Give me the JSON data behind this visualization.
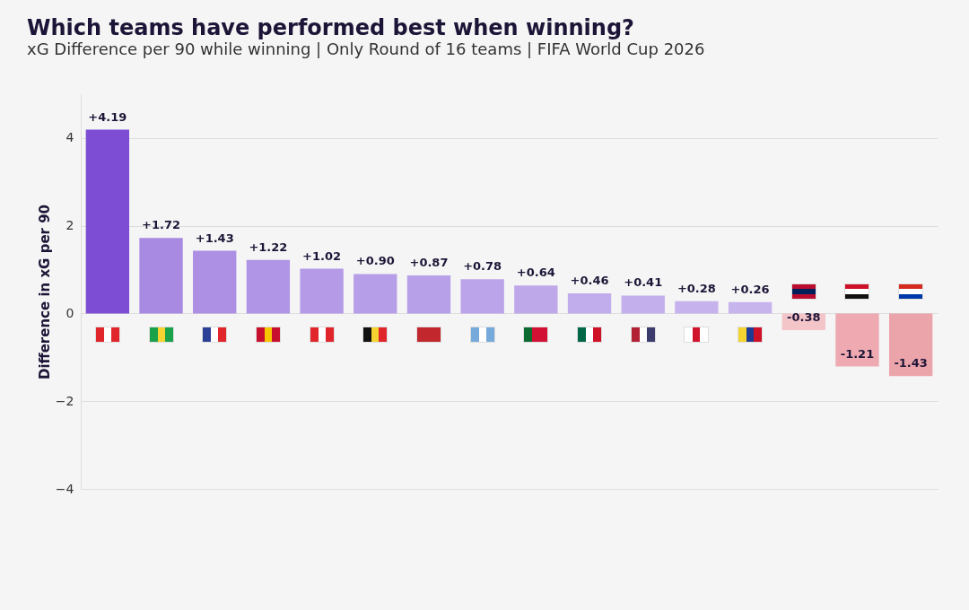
{
  "chart_data": {
    "type": "bar",
    "title": "Which teams have performed best when winning?",
    "subtitle": "xG Difference per 90 while winning | Only Round of 16 teams | FIFA World Cup 2026",
    "ylabel": "Difference in xG per 90",
    "categories": [
      null,
      null,
      null,
      null,
      null,
      null,
      null,
      null,
      null,
      null,
      null,
      null,
      null,
      null,
      null,
      null
    ],
    "values": [
      4.19,
      1.72,
      1.43,
      1.22,
      1.02,
      0.9,
      0.87,
      0.78,
      0.64,
      0.46,
      0.41,
      0.28,
      0.26,
      -0.38,
      -1.21,
      -1.43
    ],
    "colors": [
      "#7d4ed3",
      "#a98ae2",
      "#ad8fe4",
      "#b095e6",
      "#b49ae7",
      "#b79ee8",
      "#b8a0e8",
      "#bba4e9",
      "#bea8ea",
      "#c2adec",
      "#c3afec",
      "#c6b3ed",
      "#c7b4ed",
      "#f3c4c8",
      "#eeaab0",
      "#eca4ab"
    ],
    "value_labels": [
      "+4.19",
      "+1.72",
      "+1.43",
      "+1.22",
      "+1.02",
      "+0.90",
      "+0.87",
      "+0.78",
      "+0.64",
      "+0.46",
      "+0.41",
      "+0.28",
      "+0.26",
      "-0.38",
      "-1.21",
      "-1.43"
    ],
    "ylim": [
      -4,
      5
    ],
    "yticks": [
      -4,
      -2,
      0,
      2,
      4
    ],
    "grid": "y",
    "tick_labels": "y"
  }
}
